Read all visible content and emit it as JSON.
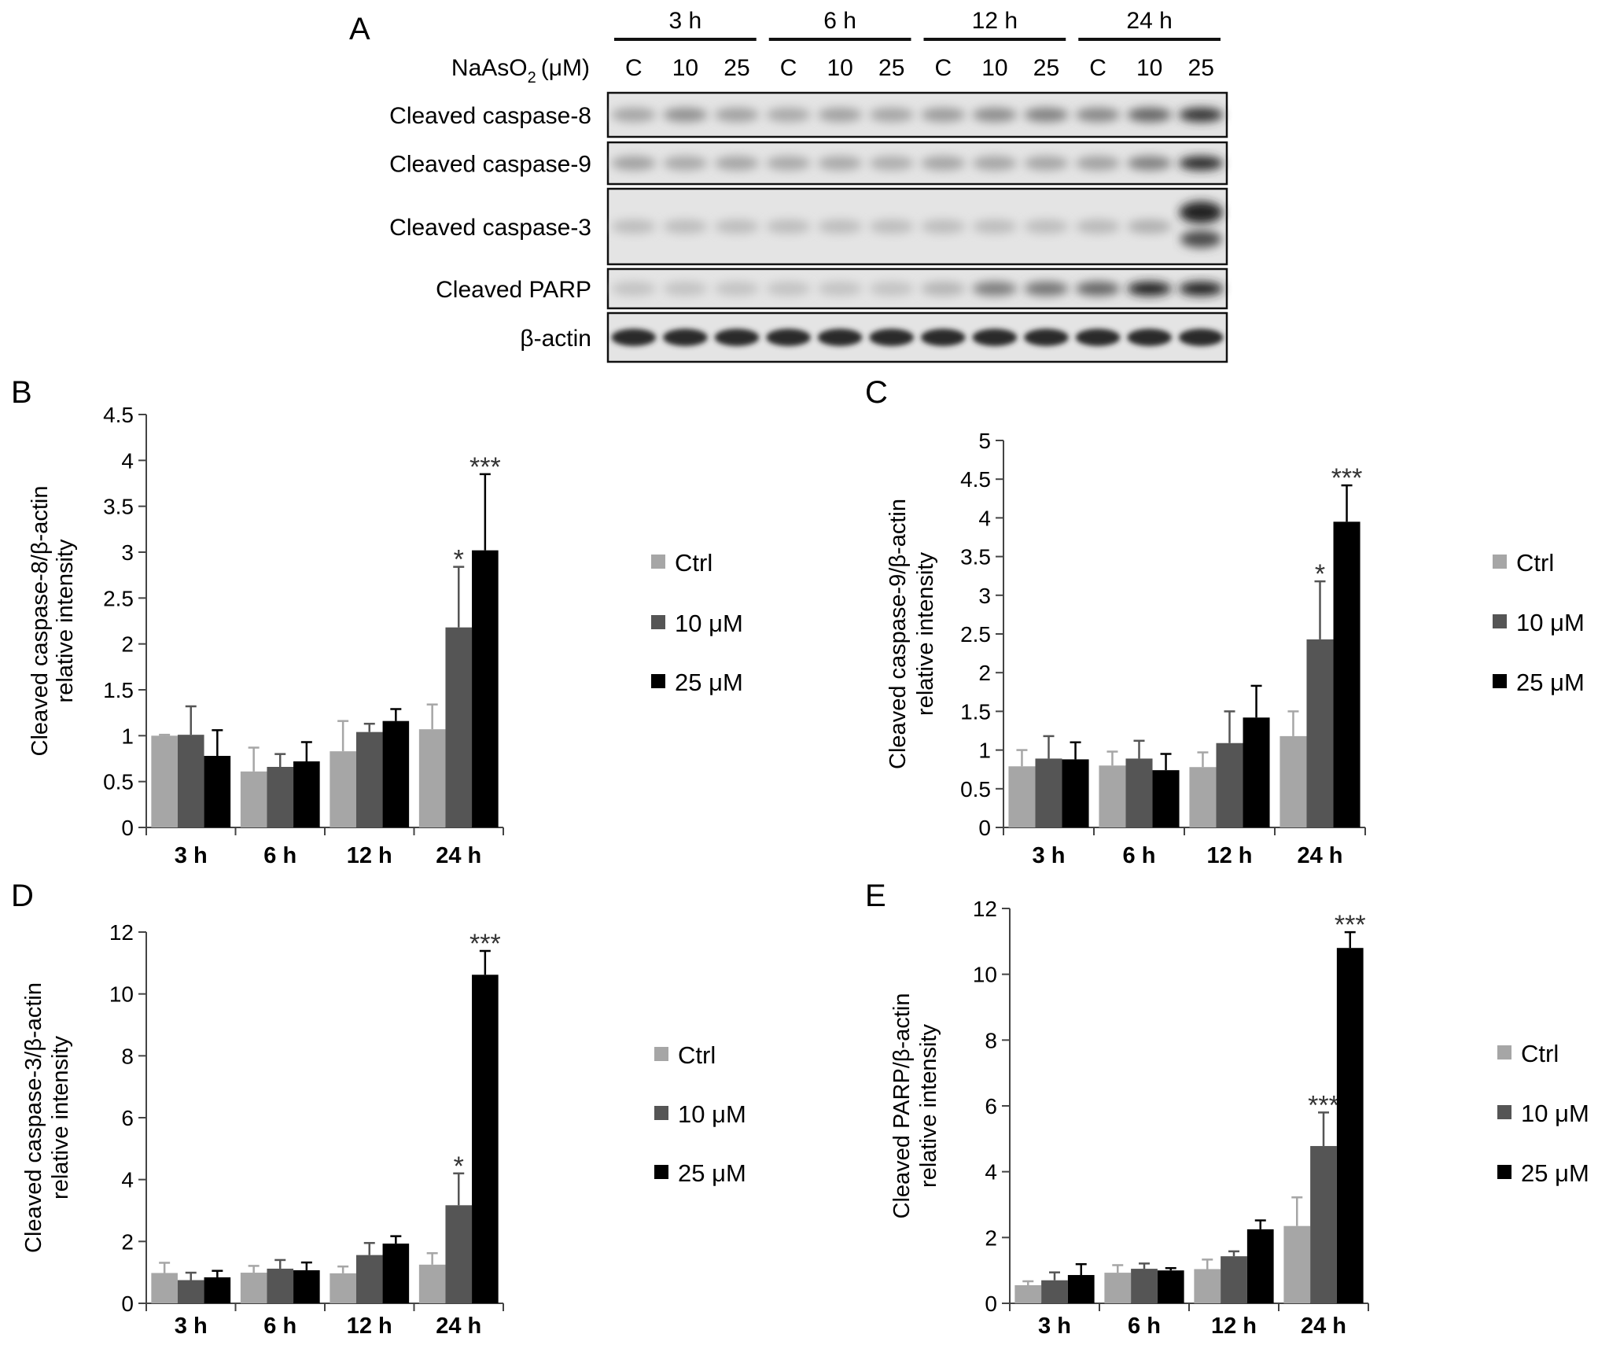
{
  "panel_a": {
    "label": "A",
    "reagent_label": "NaAsO",
    "reagent_sub": "2",
    "reagent_unit": "(μM)",
    "time_groups": [
      "3 h",
      "6 h",
      "12 h",
      "24 h"
    ],
    "lane_labels": [
      "C",
      "10",
      "25",
      "C",
      "10",
      "25",
      "C",
      "10",
      "25",
      "C",
      "10",
      "25"
    ],
    "blots": [
      {
        "label": "Cleaved caspase-8",
        "band_intensity": [
          0.3,
          0.4,
          0.32,
          0.28,
          0.32,
          0.3,
          0.35,
          0.42,
          0.48,
          0.45,
          0.62,
          0.88
        ]
      },
      {
        "label": "Cleaved caspase-9",
        "band_intensity": [
          0.32,
          0.28,
          0.3,
          0.28,
          0.28,
          0.26,
          0.3,
          0.3,
          0.3,
          0.32,
          0.48,
          0.92
        ]
      },
      {
        "label": "Cleaved caspase-3",
        "band_intensity": [
          0.18,
          0.18,
          0.18,
          0.18,
          0.18,
          0.18,
          0.18,
          0.18,
          0.18,
          0.2,
          0.24,
          0.95
        ]
      },
      {
        "label": "Cleaved PARP",
        "band_intensity": [
          0.15,
          0.15,
          0.15,
          0.15,
          0.15,
          0.15,
          0.22,
          0.5,
          0.55,
          0.62,
          0.95,
          0.95
        ]
      },
      {
        "label": "β-actin",
        "band_intensity": [
          0.92,
          0.92,
          0.92,
          0.92,
          0.92,
          0.92,
          0.92,
          0.92,
          0.92,
          0.92,
          0.92,
          0.92
        ]
      }
    ]
  },
  "chart_data": [
    {
      "panel": "B",
      "type": "bar",
      "ylabel": [
        "Cleaved caspase-8/β-actin",
        "relative intensity"
      ],
      "categories": [
        "3 h",
        "6 h",
        "12 h",
        "24 h"
      ],
      "ylim": [
        0,
        4.5
      ],
      "yticks": [
        "0",
        "0.5",
        "1",
        "1.5",
        "2",
        "2.5",
        "3",
        "3.5",
        "4",
        "4.5"
      ],
      "ytick_values": [
        0,
        0.5,
        1,
        1.5,
        2,
        2.5,
        3,
        3.5,
        4,
        4.5
      ],
      "series": [
        {
          "name": "Ctrl",
          "color": "#a6a6a6",
          "values": [
            1.0,
            0.61,
            0.83,
            1.07
          ],
          "errors": [
            0.01,
            0.26,
            0.33,
            0.27
          ],
          "annotations": [
            "",
            "",
            "",
            ""
          ]
        },
        {
          "name": "10 μM",
          "color": "#555555",
          "values": [
            1.01,
            0.66,
            1.04,
            2.18
          ],
          "errors": [
            0.31,
            0.14,
            0.09,
            0.66
          ],
          "annotations": [
            "",
            "",
            "",
            "*"
          ]
        },
        {
          "name": "25 μM",
          "color": "#000000",
          "values": [
            0.78,
            0.72,
            1.16,
            3.02
          ],
          "errors": [
            0.28,
            0.21,
            0.13,
            0.83
          ],
          "annotations": [
            "",
            "",
            "",
            "***"
          ]
        }
      ],
      "legend": "right"
    },
    {
      "panel": "C",
      "type": "bar",
      "ylabel": [
        "Cleaved caspase-9/β-actin",
        "relative intensity"
      ],
      "categories": [
        "3 h",
        "6 h",
        "12 h",
        "24 h"
      ],
      "ylim": [
        0,
        5
      ],
      "yticks": [
        "0",
        "0.5",
        "1",
        "1.5",
        "2",
        "2.5",
        "3",
        "3.5",
        "4",
        "4.5",
        "5"
      ],
      "ytick_values": [
        0,
        0.5,
        1,
        1.5,
        2,
        2.5,
        3,
        3.5,
        4,
        4.5,
        5
      ],
      "series": [
        {
          "name": "Ctrl",
          "color": "#a6a6a6",
          "values": [
            0.79,
            0.8,
            0.78,
            1.18
          ],
          "errors": [
            0.21,
            0.18,
            0.19,
            0.32
          ],
          "annotations": [
            "",
            "",
            "",
            ""
          ]
        },
        {
          "name": "10 μM",
          "color": "#555555",
          "values": [
            0.89,
            0.89,
            1.09,
            2.43
          ],
          "errors": [
            0.29,
            0.23,
            0.41,
            0.75
          ],
          "annotations": [
            "",
            "",
            "",
            "*"
          ]
        },
        {
          "name": "25 μM",
          "color": "#000000",
          "values": [
            0.88,
            0.74,
            1.42,
            3.95
          ],
          "errors": [
            0.22,
            0.21,
            0.41,
            0.47
          ],
          "annotations": [
            "",
            "",
            "",
            "***"
          ]
        }
      ],
      "legend": "right"
    },
    {
      "panel": "D",
      "type": "bar",
      "ylabel": [
        "Cleaved caspase-3/β-actin",
        "relative intensity"
      ],
      "categories": [
        "3 h",
        "6 h",
        "12 h",
        "24 h"
      ],
      "ylim": [
        0,
        12
      ],
      "yticks": [
        "0",
        "2",
        "4",
        "6",
        "8",
        "10",
        "12"
      ],
      "ytick_values": [
        0,
        2,
        4,
        6,
        8,
        10,
        12
      ],
      "series": [
        {
          "name": "Ctrl",
          "color": "#a6a6a6",
          "values": [
            0.98,
            0.99,
            0.97,
            1.25
          ],
          "errors": [
            0.33,
            0.22,
            0.22,
            0.37
          ],
          "annotations": [
            "",
            "",
            "",
            ""
          ]
        },
        {
          "name": "10 μM",
          "color": "#555555",
          "values": [
            0.75,
            1.12,
            1.56,
            3.17
          ],
          "errors": [
            0.24,
            0.28,
            0.39,
            1.03
          ],
          "annotations": [
            "",
            "",
            "",
            "*"
          ]
        },
        {
          "name": "25 μM",
          "color": "#000000",
          "values": [
            0.84,
            1.07,
            1.93,
            10.62
          ],
          "errors": [
            0.21,
            0.25,
            0.24,
            0.77
          ],
          "annotations": [
            "",
            "",
            "",
            "***"
          ]
        }
      ],
      "legend": "right"
    },
    {
      "panel": "E",
      "type": "bar",
      "ylabel": [
        "Cleaved PARP/β-actin",
        "relative intensity"
      ],
      "categories": [
        "3 h",
        "6 h",
        "12 h",
        "24 h"
      ],
      "ylim": [
        0,
        12
      ],
      "yticks": [
        "0",
        "2",
        "4",
        "6",
        "8",
        "10",
        "12"
      ],
      "ytick_values": [
        0,
        2,
        4,
        6,
        8,
        10,
        12
      ],
      "series": [
        {
          "name": "Ctrl",
          "color": "#a6a6a6",
          "values": [
            0.55,
            0.93,
            1.04,
            2.35
          ],
          "errors": [
            0.12,
            0.23,
            0.29,
            0.87
          ],
          "annotations": [
            "",
            "",
            "",
            ""
          ]
        },
        {
          "name": "10 μM",
          "color": "#555555",
          "values": [
            0.7,
            1.05,
            1.43,
            4.78
          ],
          "errors": [
            0.24,
            0.16,
            0.15,
            1.02
          ],
          "annotations": [
            "",
            "",
            "",
            "***"
          ]
        },
        {
          "name": "25 μM",
          "color": "#000000",
          "values": [
            0.86,
            1.0,
            2.25,
            10.8
          ],
          "errors": [
            0.33,
            0.07,
            0.27,
            0.48
          ],
          "annotations": [
            "",
            "",
            "",
            "***"
          ]
        }
      ],
      "legend": "right"
    }
  ]
}
